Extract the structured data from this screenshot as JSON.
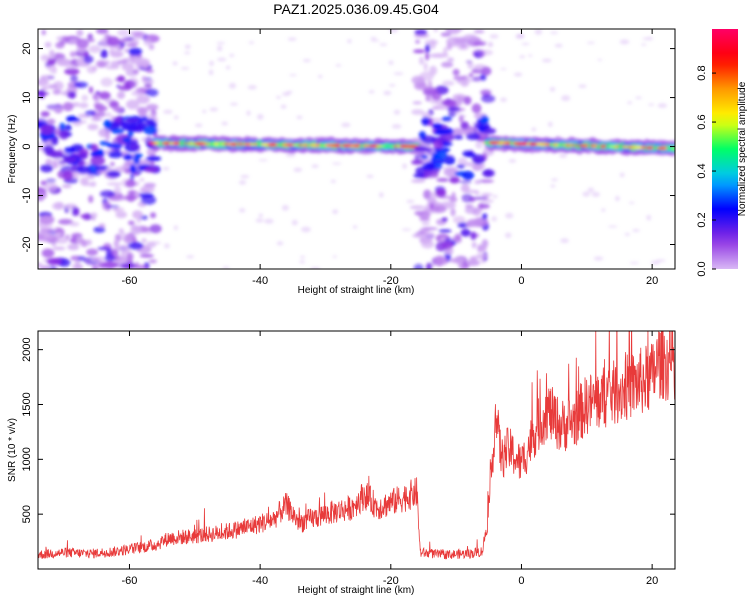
{
  "title": "PAZ1.2025.036.09.45.G04",
  "colors": {
    "snr_line": "#e83a3a",
    "frame": "#000000",
    "colormap": [
      "#d9b8f5",
      "#8a2be2",
      "#0000ff",
      "#00bfff",
      "#00ff66",
      "#ffff00",
      "#ff9900",
      "#ff0000",
      "#ff0066"
    ]
  },
  "chart_data": [
    {
      "type": "heatmap",
      "xlabel": "Height of straight line (km)",
      "ylabel": "Frequency (Hz)",
      "xlim": [
        -74,
        23.5
      ],
      "ylim": [
        -25,
        24
      ],
      "xticks": [
        -60,
        -40,
        -20,
        0,
        20
      ],
      "yticks": [
        -20,
        -10,
        0,
        10,
        20
      ],
      "colorbar": {
        "label": "Normalized spectral amplitude",
        "range": [
          0,
          0.98
        ],
        "ticks": [
          0.0,
          0.2,
          0.4,
          0.6,
          0.8
        ]
      },
      "regions": [
        {
          "x_range": [
            -74,
            -56
          ],
          "kind": "noise",
          "freq_spread": [
            -25,
            24
          ]
        },
        {
          "x_range": [
            -56,
            -16
          ],
          "kind": "signal",
          "center_freq_start": 0.7,
          "center_freq_end": 0.0
        },
        {
          "x_range": [
            -16,
            -5
          ],
          "kind": "noise",
          "freq_spread": [
            -25,
            24
          ]
        },
        {
          "x_range": [
            -5,
            23.5
          ],
          "kind": "signal",
          "center_freq_start": 0.8,
          "center_freq_end": -0.4
        }
      ]
    },
    {
      "type": "line",
      "xlabel": "Height of straight line (km)",
      "ylabel": "SNR (10 * v/v)",
      "xlim": [
        -74,
        23.5
      ],
      "ylim": [
        0,
        2170
      ],
      "xticks": [
        -60,
        -40,
        -20,
        0,
        20
      ],
      "yticks": [
        500,
        1000,
        1500,
        2000
      ],
      "series": [
        {
          "x": [
            -74,
            -70,
            -66,
            -62,
            -58,
            -56,
            -54,
            -50,
            -46,
            -42,
            -38,
            -36,
            -34,
            -30,
            -26,
            -24,
            -22,
            -18,
            -16,
            -15.5,
            -12,
            -8,
            -6,
            -5,
            -4,
            -3,
            -2,
            0,
            2,
            4,
            6,
            8,
            10,
            12,
            14,
            16,
            18,
            20,
            21,
            23.5
          ],
          "y": [
            130,
            150,
            140,
            160,
            200,
            220,
            280,
            300,
            330,
            380,
            450,
            580,
            420,
            500,
            560,
            680,
            560,
            650,
            700,
            150,
            130,
            140,
            160,
            500,
            1400,
            1000,
            1100,
            950,
            1250,
            1450,
            1300,
            1350,
            1500,
            1550,
            1600,
            1650,
            1700,
            1750,
            1900,
            1850
          ]
        }
      ]
    }
  ]
}
